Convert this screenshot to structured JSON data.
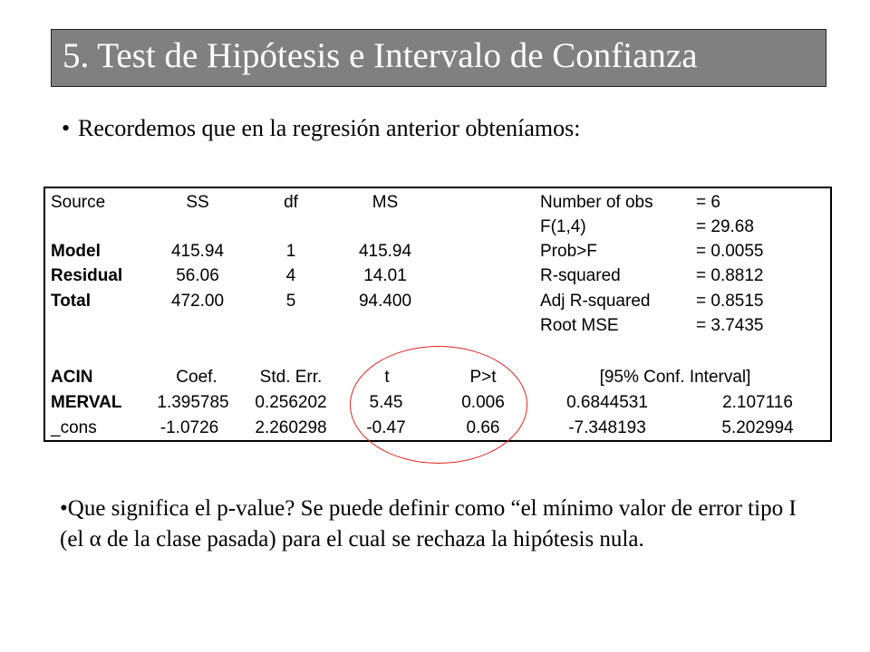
{
  "slide": {
    "title": "5. Test de Hipótesis e Intervalo de Confianza",
    "bullet_intro": "Recordemos que en la regresión anterior obteníamos:",
    "bullet_char": "•",
    "paragraph_bullet": "•",
    "paragraph": "Que significa el p-value? Se puede definir como “el mínimo valor de error tipo I (el α de la clase pasada) para el cual se rechaza la hipótesis nula.",
    "highlight_color": "#e02020",
    "title_bg_color": "#808080"
  },
  "anova": {
    "headers": [
      "Source",
      "SS",
      "df",
      "MS"
    ],
    "rows": [
      {
        "source": "Model",
        "ss": "415.94",
        "df": "1",
        "ms": "415.94"
      },
      {
        "source": "Residual",
        "ss": "56.06",
        "df": "4",
        "ms": "14.01"
      },
      {
        "source": "Total",
        "ss": "472.00",
        "df": "5",
        "ms": "94.400"
      }
    ]
  },
  "stats": [
    {
      "label": "Number of obs",
      "value": "= 6"
    },
    {
      "label": "F(1,4)",
      "value": "= 29.68"
    },
    {
      "label": "Prob>F",
      "value": "= 0.0055"
    },
    {
      "label": "R-squared",
      "value": "= 0.8812"
    },
    {
      "label": "Adj R-squared",
      "value": "= 0.8515"
    },
    {
      "label": "Root MSE",
      "value": "= 3.7435"
    }
  ],
  "coef": {
    "headers": [
      "ACIN",
      "Coef.",
      "Std. Err.",
      "t",
      "P>t",
      "[95% Conf. Interval]"
    ],
    "rows": [
      {
        "name": "MERVAL",
        "coef": "1.395785",
        "se": "0.256202",
        "t": "5.45",
        "p": "0.006",
        "lo": "0.6844531",
        "hi": "2.107116"
      },
      {
        "name": "_cons",
        "coef": "-1.0726",
        "se": "2.260298",
        "t": "-0.47",
        "p": "0.66",
        "lo": "-7.348193",
        "hi": "5.202994"
      }
    ]
  }
}
